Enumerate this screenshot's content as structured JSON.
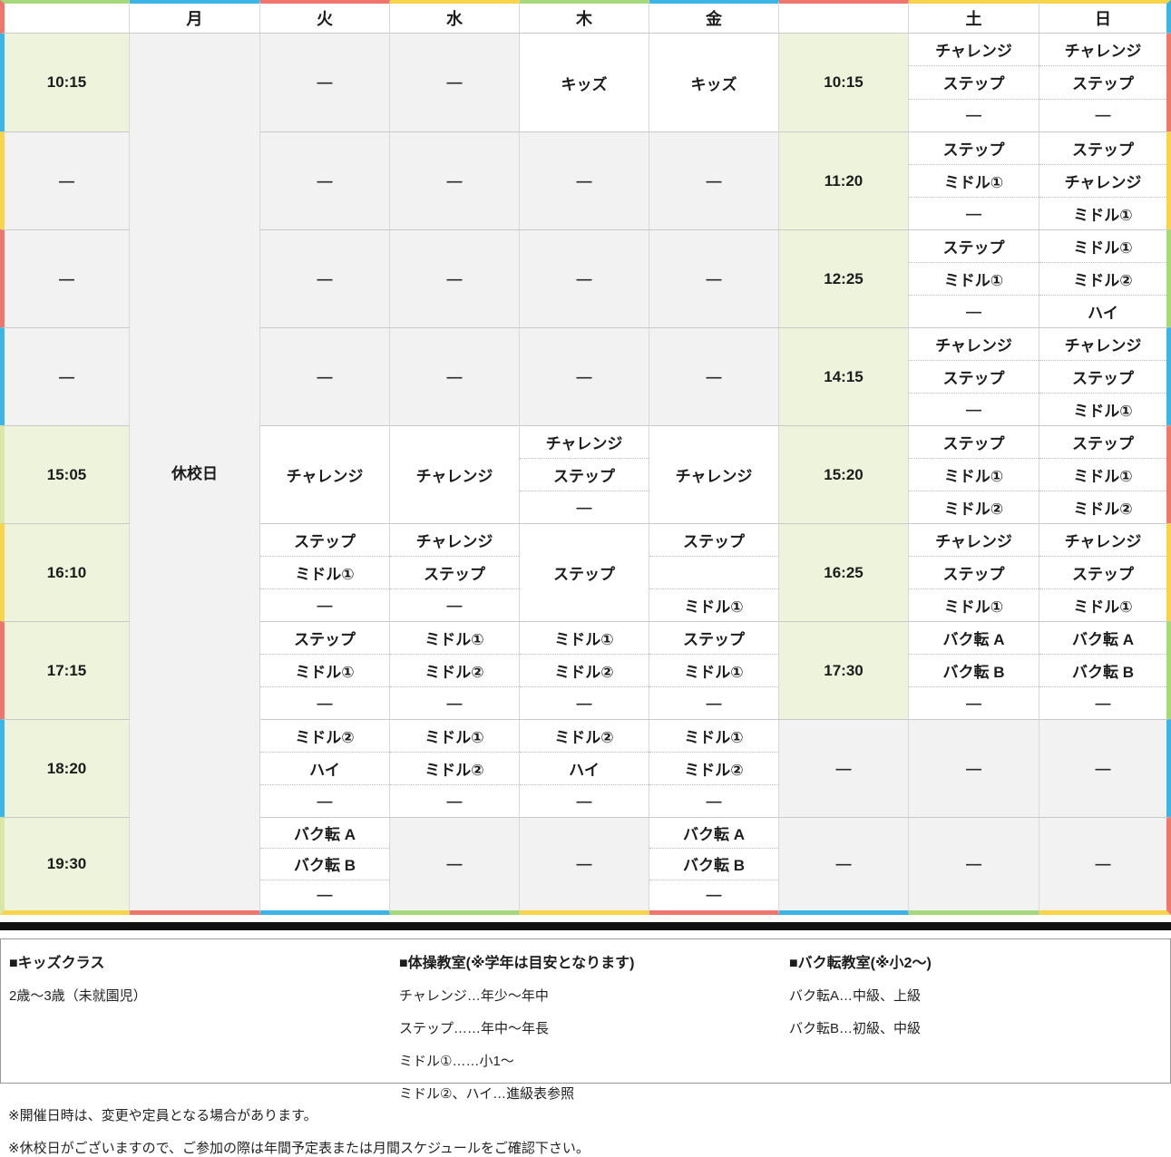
{
  "palette": {
    "cyan": "#3ab5e6",
    "yellow": "#f8d44a",
    "red": "#ef756d",
    "green": "#a8d87c",
    "lime": "#d9e7a6",
    "time_bg": "#eef3dc",
    "empty_bg": "#f2f2f2",
    "cell_bg": "#ffffff",
    "divider_bar": "#111111"
  },
  "table": {
    "columns": [
      {
        "key": "time_l",
        "label": "",
        "top": "green"
      },
      {
        "key": "mon",
        "label": "月",
        "top": "cyan"
      },
      {
        "key": "tue",
        "label": "火",
        "top": "red"
      },
      {
        "key": "wed",
        "label": "水",
        "top": "yellow"
      },
      {
        "key": "thu",
        "label": "木",
        "top": "green"
      },
      {
        "key": "fri",
        "label": "金",
        "top": "cyan"
      },
      {
        "key": "time_r",
        "label": "",
        "top": "red"
      },
      {
        "key": "sat",
        "label": "土",
        "top": "yellow"
      },
      {
        "key": "sun",
        "label": "日",
        "top": "yellow"
      }
    ],
    "header_left_stripe": "red",
    "header_right_stripe": "cyan",
    "left_stripes": [
      "cyan",
      "yellow",
      "red",
      "cyan",
      "lime",
      "yellow",
      "red",
      "cyan",
      "lime"
    ],
    "right_stripes": [
      "red",
      "yellow",
      "green",
      "cyan",
      "red",
      "yellow",
      "green",
      "cyan",
      "red"
    ],
    "bottom_stripes": [
      "yellow",
      "red",
      "cyan",
      "green",
      "yellow",
      "red",
      "cyan",
      "green",
      "yellow"
    ],
    "closed_label": "休校日",
    "rows": [
      {
        "time_l": {
          "text": "10:15",
          "style": "time"
        },
        "tue": {
          "style": "empty",
          "lines": [
            "—"
          ]
        },
        "wed": {
          "style": "empty",
          "lines": [
            "—"
          ]
        },
        "thu": {
          "style": "class",
          "lines": [
            "キッズ"
          ]
        },
        "fri": {
          "style": "class",
          "lines": [
            "キッズ"
          ]
        },
        "time_r": {
          "text": "10:15",
          "style": "time"
        },
        "sat": {
          "style": "class",
          "lines": [
            "チャレンジ",
            "ステップ",
            "—"
          ]
        },
        "sun": {
          "style": "class",
          "lines": [
            "チャレンジ",
            "ステップ",
            "—"
          ]
        }
      },
      {
        "time_l": {
          "text": "—",
          "style": "time_empty"
        },
        "tue": {
          "style": "empty",
          "lines": [
            "—"
          ]
        },
        "wed": {
          "style": "empty",
          "lines": [
            "—"
          ]
        },
        "thu": {
          "style": "empty",
          "lines": [
            "—"
          ]
        },
        "fri": {
          "style": "empty",
          "lines": [
            "—"
          ]
        },
        "time_r": {
          "text": "11:20",
          "style": "time"
        },
        "sat": {
          "style": "class",
          "lines": [
            "ステップ",
            "ミドル①",
            "—"
          ]
        },
        "sun": {
          "style": "class",
          "lines": [
            "ステップ",
            "チャレンジ",
            "ミドル①"
          ]
        }
      },
      {
        "time_l": {
          "text": "—",
          "style": "time_empty"
        },
        "tue": {
          "style": "empty",
          "lines": [
            "—"
          ]
        },
        "wed": {
          "style": "empty",
          "lines": [
            "—"
          ]
        },
        "thu": {
          "style": "empty",
          "lines": [
            "—"
          ]
        },
        "fri": {
          "style": "empty",
          "lines": [
            "—"
          ]
        },
        "time_r": {
          "text": "12:25",
          "style": "time"
        },
        "sat": {
          "style": "class",
          "lines": [
            "ステップ",
            "ミドル①",
            "—"
          ]
        },
        "sun": {
          "style": "class",
          "lines": [
            "ミドル①",
            "ミドル②",
            "ハイ"
          ]
        }
      },
      {
        "time_l": {
          "text": "—",
          "style": "time_empty"
        },
        "tue": {
          "style": "empty",
          "lines": [
            "—"
          ]
        },
        "wed": {
          "style": "empty",
          "lines": [
            "—"
          ]
        },
        "thu": {
          "style": "empty",
          "lines": [
            "—"
          ]
        },
        "fri": {
          "style": "empty",
          "lines": [
            "—"
          ]
        },
        "time_r": {
          "text": "14:15",
          "style": "time"
        },
        "sat": {
          "style": "class",
          "lines": [
            "チャレンジ",
            "ステップ",
            "—"
          ]
        },
        "sun": {
          "style": "class",
          "lines": [
            "チャレンジ",
            "ステップ",
            "ミドル①"
          ]
        }
      },
      {
        "time_l": {
          "text": "15:05",
          "style": "time"
        },
        "tue": {
          "style": "class",
          "lines": [
            "チャレンジ"
          ]
        },
        "wed": {
          "style": "class",
          "lines": [
            "チャレンジ"
          ]
        },
        "thu": {
          "style": "class",
          "lines": [
            "チャレンジ",
            "ステップ",
            "—"
          ]
        },
        "fri": {
          "style": "class",
          "lines": [
            "チャレンジ"
          ]
        },
        "time_r": {
          "text": "15:20",
          "style": "time"
        },
        "sat": {
          "style": "class",
          "lines": [
            "ステップ",
            "ミドル①",
            "ミドル②"
          ]
        },
        "sun": {
          "style": "class",
          "lines": [
            "ステップ",
            "ミドル①",
            "ミドル②"
          ]
        }
      },
      {
        "time_l": {
          "text": "16:10",
          "style": "time"
        },
        "tue": {
          "style": "class",
          "lines": [
            "ステップ",
            "ミドル①",
            "—"
          ]
        },
        "wed": {
          "style": "class",
          "lines": [
            "チャレンジ",
            "ステップ",
            "—"
          ]
        },
        "thu": {
          "style": "class",
          "lines": [
            "ステップ"
          ]
        },
        "fri": {
          "style": "class",
          "lines": [
            "ステップ",
            "",
            "ミドル①"
          ]
        },
        "time_r": {
          "text": "16:25",
          "style": "time"
        },
        "sat": {
          "style": "class",
          "lines": [
            "チャレンジ",
            "ステップ",
            "ミドル①"
          ]
        },
        "sun": {
          "style": "class",
          "lines": [
            "チャレンジ",
            "ステップ",
            "ミドル①"
          ]
        }
      },
      {
        "time_l": {
          "text": "17:15",
          "style": "time"
        },
        "tue": {
          "style": "class",
          "lines": [
            "ステップ",
            "ミドル①",
            "—"
          ]
        },
        "wed": {
          "style": "class",
          "lines": [
            "ミドル①",
            "ミドル②",
            "—"
          ]
        },
        "thu": {
          "style": "class",
          "lines": [
            "ミドル①",
            "ミドル②",
            "—"
          ]
        },
        "fri": {
          "style": "class",
          "lines": [
            "ステップ",
            "ミドル①",
            "—"
          ]
        },
        "time_r": {
          "text": "17:30",
          "style": "time"
        },
        "sat": {
          "style": "class",
          "lines": [
            "バク転 A",
            "バク転 B",
            "—"
          ]
        },
        "sun": {
          "style": "class",
          "lines": [
            "バク転 A",
            "バク転 B",
            "—"
          ]
        }
      },
      {
        "time_l": {
          "text": "18:20",
          "style": "time"
        },
        "tue": {
          "style": "class",
          "lines": [
            "ミドル②",
            "ハイ",
            "—"
          ]
        },
        "wed": {
          "style": "class",
          "lines": [
            "ミドル①",
            "ミドル②",
            "—"
          ]
        },
        "thu": {
          "style": "class",
          "lines": [
            "ミドル②",
            "ハイ",
            "—"
          ]
        },
        "fri": {
          "style": "class",
          "lines": [
            "ミドル①",
            "ミドル②",
            "—"
          ]
        },
        "time_r": {
          "text": "—",
          "style": "time_empty"
        },
        "sat": {
          "style": "empty",
          "lines": [
            "—"
          ]
        },
        "sun": {
          "style": "empty",
          "lines": [
            "—"
          ]
        }
      },
      {
        "time_l": {
          "text": "19:30",
          "style": "time"
        },
        "tue": {
          "style": "class",
          "lines": [
            "バク転 A",
            "バク転 B",
            "—"
          ]
        },
        "wed": {
          "style": "empty",
          "lines": [
            "—"
          ]
        },
        "thu": {
          "style": "empty",
          "lines": [
            "—"
          ]
        },
        "fri": {
          "style": "class",
          "lines": [
            "バク転 A",
            "バク転 B",
            "—"
          ]
        },
        "time_r": {
          "text": "—",
          "style": "time_empty"
        },
        "sat": {
          "style": "empty",
          "lines": [
            "—"
          ]
        },
        "sun": {
          "style": "empty",
          "lines": [
            "—"
          ]
        }
      }
    ]
  },
  "legend": {
    "kids": {
      "title": "■キッズクラス",
      "items": [
        "2歳〜3歳（未就園児）"
      ]
    },
    "gym": {
      "title": "■体操教室(※学年は目安となります)",
      "items": [
        "チャレンジ…年少〜年中",
        "ステップ……年中〜年長",
        "ミドル①……小1〜",
        "ミドル②、ハイ…進級表参照"
      ]
    },
    "backflip": {
      "title": "■バク転教室(※小2〜)",
      "items": [
        "バク転A…中級、上級",
        "バク転B…初級、中級"
      ]
    }
  },
  "notes": [
    "※開催日時は、変更や定員となる場合があります。",
    "※休校日がございますので、ご参加の際は年間予定表または月間スケジュールをご確認下さい。"
  ]
}
